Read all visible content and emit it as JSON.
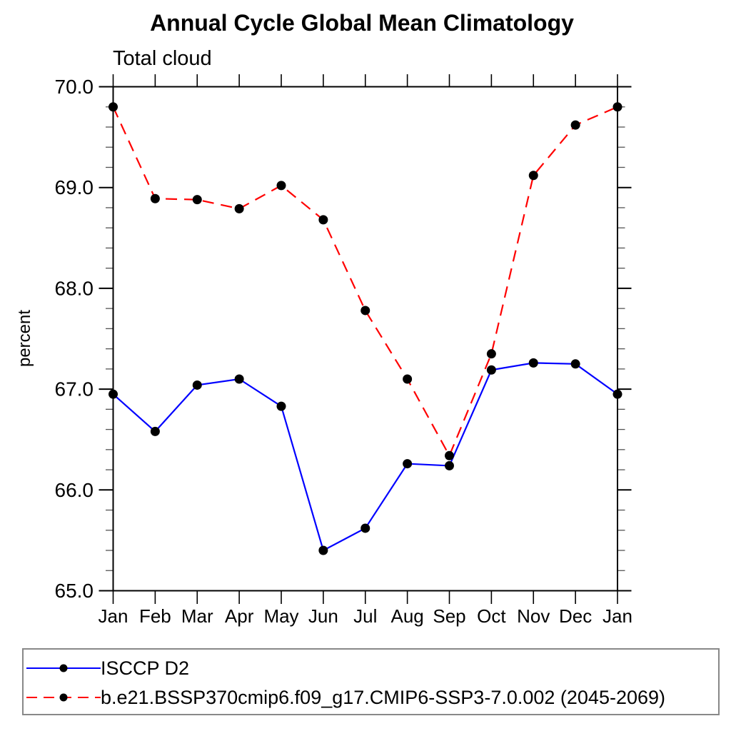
{
  "title": "Annual Cycle Global Mean Climatology",
  "subtitle": "Total cloud",
  "chart_data": {
    "type": "line",
    "title": "Annual Cycle Global Mean Climatology",
    "subtitle": "Total cloud",
    "xlabel": "",
    "ylabel": "percent",
    "categories": [
      "Jan",
      "Feb",
      "Mar",
      "Apr",
      "May",
      "Jun",
      "Jul",
      "Aug",
      "Sep",
      "Oct",
      "Nov",
      "Dec",
      "Jan"
    ],
    "series": [
      {
        "name": "ISCCP D2",
        "color": "#0000ff",
        "line_style": "solid",
        "marker": "circle",
        "marker_color": "#000000",
        "values": [
          66.95,
          66.58,
          67.04,
          67.1,
          66.83,
          65.4,
          65.62,
          66.26,
          66.24,
          67.19,
          67.26,
          67.25,
          66.95
        ]
      },
      {
        "name": "b.e21.BSSP370cmip6.f09_g17.CMIP6-SSP3-7.0.002 (2045-2069)",
        "color": "#ff0000",
        "line_style": "dashed",
        "marker": "circle",
        "marker_color": "#000000",
        "values": [
          69.8,
          68.89,
          68.88,
          68.79,
          69.02,
          68.68,
          67.78,
          67.1,
          66.34,
          67.35,
          69.12,
          69.62,
          69.8
        ]
      }
    ],
    "ylim": [
      65.0,
      70.0
    ],
    "yticks": [
      65.0,
      66.0,
      67.0,
      68.0,
      69.0,
      70.0
    ],
    "ytick_labels": [
      "65.0",
      "66.0",
      "67.0",
      "68.0",
      "69.0",
      "70.0"
    ],
    "y_minor_step": 0.2,
    "grid": false,
    "legend_position": "bottom",
    "axis_color": "#000000",
    "background": "#ffffff"
  }
}
